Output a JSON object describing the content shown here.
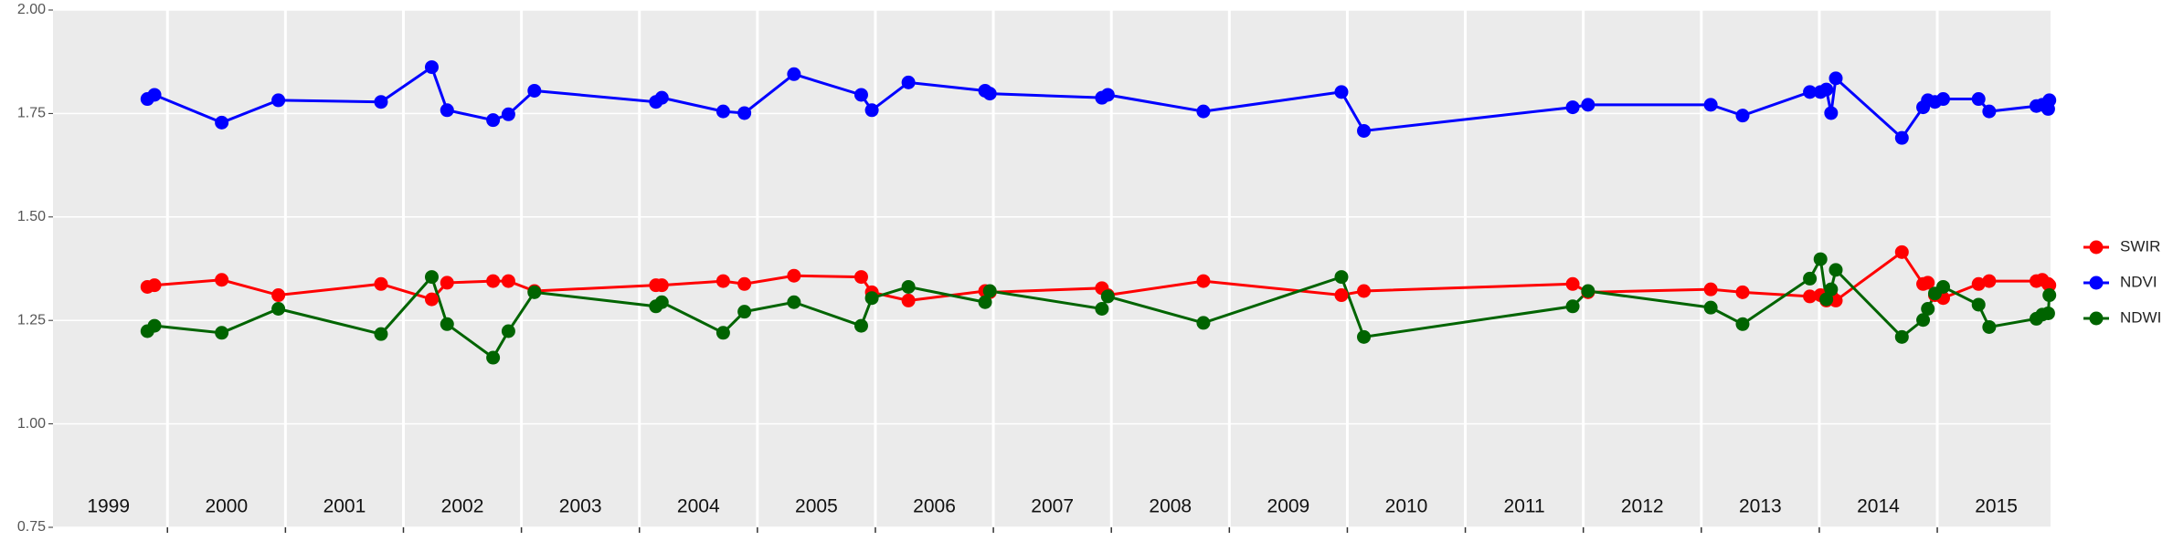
{
  "chart_data": {
    "type": "line",
    "x": [
      1999.83,
      1999.89,
      2000.46,
      2000.94,
      2001.81,
      2002.24,
      2002.37,
      2002.76,
      2002.89,
      2003.11,
      2004.14,
      2004.19,
      2004.71,
      2004.89,
      2005.31,
      2005.88,
      2005.97,
      2006.28,
      2006.93,
      2006.97,
      2007.92,
      2007.97,
      2008.78,
      2009.95,
      2010.14,
      2011.91,
      2012.04,
      2013.08,
      2013.35,
      2013.92,
      2014.01,
      2014.06,
      2014.1,
      2014.14,
      2014.7,
      2014.88,
      2014.92,
      2014.98,
      2015.05,
      2015.35,
      2015.44,
      2015.84,
      2015.89,
      2015.94,
      2015.95
    ],
    "series": [
      {
        "name": "SWIR",
        "color": "#ff0000",
        "values": [
          1.331,
          1.335,
          1.348,
          1.311,
          1.338,
          1.301,
          1.341,
          1.345,
          1.345,
          1.321,
          1.335,
          1.335,
          1.345,
          1.338,
          1.358,
          1.355,
          1.318,
          1.298,
          1.321,
          1.318,
          1.328,
          1.311,
          1.345,
          1.311,
          1.321,
          1.338,
          1.318,
          1.325,
          1.318,
          1.308,
          1.311,
          1.298,
          1.311,
          1.298,
          1.415,
          1.338,
          1.341,
          1.311,
          1.304,
          1.338,
          1.345,
          1.345,
          1.348,
          1.338,
          1.335
        ]
      },
      {
        "name": "NDVI",
        "color": "#0000ff",
        "values": [
          1.785,
          1.795,
          1.728,
          1.782,
          1.778,
          1.862,
          1.758,
          1.734,
          1.748,
          1.805,
          1.778,
          1.788,
          1.755,
          1.751,
          1.845,
          1.795,
          1.758,
          1.825,
          1.805,
          1.798,
          1.788,
          1.795,
          1.755,
          1.802,
          1.708,
          1.765,
          1.771,
          1.771,
          1.745,
          1.802,
          1.802,
          1.808,
          1.751,
          1.835,
          1.691,
          1.765,
          1.782,
          1.778,
          1.785,
          1.785,
          1.755,
          1.768,
          1.771,
          1.761,
          1.782
        ]
      },
      {
        "name": "NDWI",
        "color": "#006400",
        "values": [
          1.224,
          1.237,
          1.22,
          1.278,
          1.217,
          1.355,
          1.241,
          1.16,
          1.224,
          1.318,
          1.284,
          1.294,
          1.22,
          1.271,
          1.294,
          1.237,
          1.304,
          1.331,
          1.294,
          1.321,
          1.278,
          1.308,
          1.244,
          1.355,
          1.21,
          1.284,
          1.321,
          1.281,
          1.241,
          1.351,
          1.398,
          1.301,
          1.325,
          1.372,
          1.21,
          1.251,
          1.278,
          1.315,
          1.331,
          1.288,
          1.234,
          1.254,
          1.264,
          1.267,
          1.311
        ]
      }
    ],
    "xlim": [
      1999.03,
      2015.96
    ],
    "xgrid": [
      2000,
      2001,
      2002,
      2003,
      2004,
      2005,
      2006,
      2007,
      2008,
      2009,
      2010,
      2011,
      2012,
      2013,
      2014,
      2015
    ],
    "xticks": [
      {
        "value": 1999.5,
        "label": "1999"
      },
      {
        "value": 2000.5,
        "label": "2000"
      },
      {
        "value": 2001.5,
        "label": "2001"
      },
      {
        "value": 2002.5,
        "label": "2002"
      },
      {
        "value": 2003.5,
        "label": "2003"
      },
      {
        "value": 2004.5,
        "label": "2004"
      },
      {
        "value": 2005.5,
        "label": "2005"
      },
      {
        "value": 2006.5,
        "label": "2006"
      },
      {
        "value": 2007.5,
        "label": "2007"
      },
      {
        "value": 2008.5,
        "label": "2008"
      },
      {
        "value": 2009.5,
        "label": "2009"
      },
      {
        "value": 2010.5,
        "label": "2010"
      },
      {
        "value": 2011.5,
        "label": "2011"
      },
      {
        "value": 2012.5,
        "label": "2012"
      },
      {
        "value": 2013.5,
        "label": "2013"
      },
      {
        "value": 2014.5,
        "label": "2014"
      },
      {
        "value": 2015.5,
        "label": "2015"
      }
    ],
    "ylim": [
      0.75,
      2.0
    ],
    "yticks": [
      {
        "value": 0.75,
        "label": "0.75"
      },
      {
        "value": 1.0,
        "label": "1.00"
      },
      {
        "value": 1.25,
        "label": "1.25"
      },
      {
        "value": 1.5,
        "label": "1.50"
      },
      {
        "value": 1.75,
        "label": "1.75"
      },
      {
        "value": 2.0,
        "label": "2.00"
      }
    ],
    "grid": true,
    "legend": "right"
  }
}
